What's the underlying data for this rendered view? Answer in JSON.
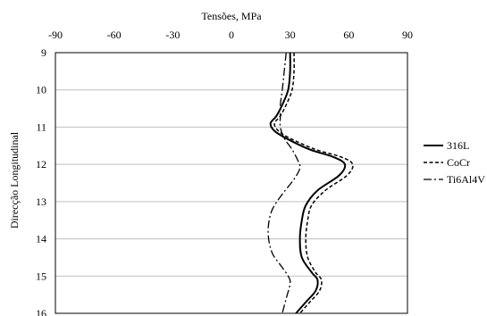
{
  "chart_data": {
    "type": "line",
    "title": "",
    "xlabel": "Tensões, MPa",
    "ylabel": "Direcção Longitudinal",
    "x_axis_position": "top",
    "y_axis_inverted": true,
    "xlim": [
      -90,
      90
    ],
    "ylim": [
      9,
      16
    ],
    "x_ticks": [
      "-90",
      "-60",
      "-30",
      "0",
      "30",
      "60",
      "90"
    ],
    "y_ticks": [
      "9",
      "10",
      "11",
      "12",
      "13",
      "14",
      "15",
      "16"
    ],
    "grid": "horizontal",
    "legend": "right",
    "series": [
      {
        "name": "316L",
        "style": "solid",
        "color": "#000000",
        "points": [
          [
            30,
            9
          ],
          [
            30,
            9.5
          ],
          [
            29,
            10
          ],
          [
            26,
            10.4
          ],
          [
            23,
            10.7
          ],
          [
            20,
            10.9
          ],
          [
            22,
            11.1
          ],
          [
            28,
            11.3
          ],
          [
            40,
            11.6
          ],
          [
            52,
            11.8
          ],
          [
            58,
            12.0
          ],
          [
            55,
            12.3
          ],
          [
            44,
            12.7
          ],
          [
            38,
            13.1
          ],
          [
            36,
            13.5
          ],
          [
            35,
            14.0
          ],
          [
            36,
            14.5
          ],
          [
            41,
            14.9
          ],
          [
            44,
            15.1
          ],
          [
            43,
            15.4
          ],
          [
            38,
            15.7
          ],
          [
            33,
            16
          ]
        ]
      },
      {
        "name": "CoCr",
        "style": "dashed",
        "color": "#000000",
        "points": [
          [
            32,
            9
          ],
          [
            32,
            9.5
          ],
          [
            31,
            10
          ],
          [
            28,
            10.4
          ],
          [
            25,
            10.7
          ],
          [
            22,
            10.9
          ],
          [
            24,
            11.1
          ],
          [
            30,
            11.3
          ],
          [
            43,
            11.6
          ],
          [
            56,
            11.8
          ],
          [
            62,
            12.0
          ],
          [
            59,
            12.3
          ],
          [
            48,
            12.7
          ],
          [
            41,
            13.1
          ],
          [
            39,
            13.5
          ],
          [
            38,
            14.0
          ],
          [
            39,
            14.5
          ],
          [
            43,
            14.9
          ],
          [
            46,
            15.1
          ],
          [
            45,
            15.4
          ],
          [
            40,
            15.7
          ],
          [
            35,
            16
          ]
        ]
      },
      {
        "name": "Ti6Al4V",
        "style": "dashdot",
        "color": "#000000",
        "points": [
          [
            28,
            9
          ],
          [
            27,
            9.5
          ],
          [
            26,
            10
          ],
          [
            25,
            10.4
          ],
          [
            25,
            10.7
          ],
          [
            25,
            11.0
          ],
          [
            27,
            11.3
          ],
          [
            31,
            11.6
          ],
          [
            34,
            11.9
          ],
          [
            35,
            12.1
          ],
          [
            32,
            12.4
          ],
          [
            26,
            12.8
          ],
          [
            21,
            13.2
          ],
          [
            19,
            13.6
          ],
          [
            19,
            14.0
          ],
          [
            21,
            14.4
          ],
          [
            25,
            14.7
          ],
          [
            29,
            15.0
          ],
          [
            30,
            15.2
          ],
          [
            28,
            15.6
          ],
          [
            26,
            16
          ]
        ]
      }
    ]
  }
}
